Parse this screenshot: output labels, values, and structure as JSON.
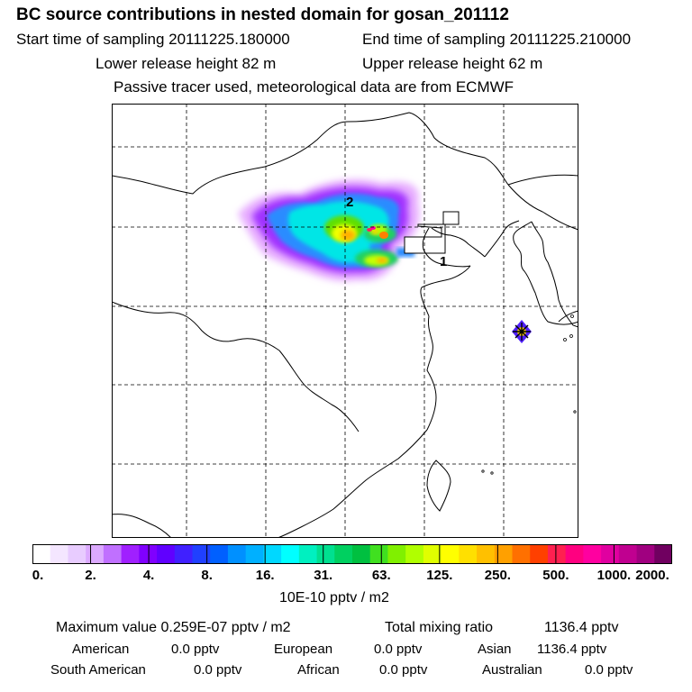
{
  "header": {
    "title": "BC  source contributions in nested domain for gosan_201112",
    "start_label": "Start time of sampling 20111225.180000",
    "end_label": "End time of sampling 20111225.210000",
    "lower_label": "Lower release height   82 m",
    "upper_label": "Upper release height   62 m",
    "note": "Passive tracer used, meteorological data are from ECMWF"
  },
  "map": {
    "region_labels": [
      "1",
      "2"
    ],
    "receptor_icon": "receptor-star-icon"
  },
  "colorbar": {
    "ticks": [
      "0.",
      "2.",
      "4.",
      "8.",
      "16.",
      "31.",
      "63.",
      "125.",
      "250.",
      "500.",
      "1000.",
      "2000."
    ],
    "unit": "10E-10 pptv / m2",
    "colors": [
      "#ffffff",
      "#f4e6ff",
      "#e8ccff",
      "#dcaaff",
      "#c070ff",
      "#a020ff",
      "#8000ff",
      "#6000ff",
      "#4020ff",
      "#2040ff",
      "#0060ff",
      "#0090ff",
      "#00b0ff",
      "#00d8ff",
      "#00ffff",
      "#00f0c0",
      "#00e090",
      "#00d060",
      "#00c040",
      "#40e020",
      "#80f000",
      "#b0ff00",
      "#e0ff00",
      "#ffff00",
      "#ffe000",
      "#ffc000",
      "#ffa000",
      "#ff7000",
      "#ff4000",
      "#ff2050",
      "#ff0080",
      "#ff00a0",
      "#e000a0",
      "#c00090",
      "#a00080",
      "#700060"
    ]
  },
  "stats": {
    "max_label": "Maximum value  0.259E-07 pptv / m2",
    "total_label": "Total mixing ratio",
    "total_value": "1136.4 pptv",
    "american_label": "American",
    "american_value": "0.0 pptv",
    "european_label": "European",
    "european_value": "0.0 pptv",
    "asian_label": "Asian",
    "asian_value": "1136.4 pptv",
    "south_american_label": "South American",
    "south_american_value": "0.0 pptv",
    "african_label": "African",
    "african_value": "0.0 pptv",
    "australian_label": "Australian",
    "australian_value": "0.0 pptv"
  }
}
